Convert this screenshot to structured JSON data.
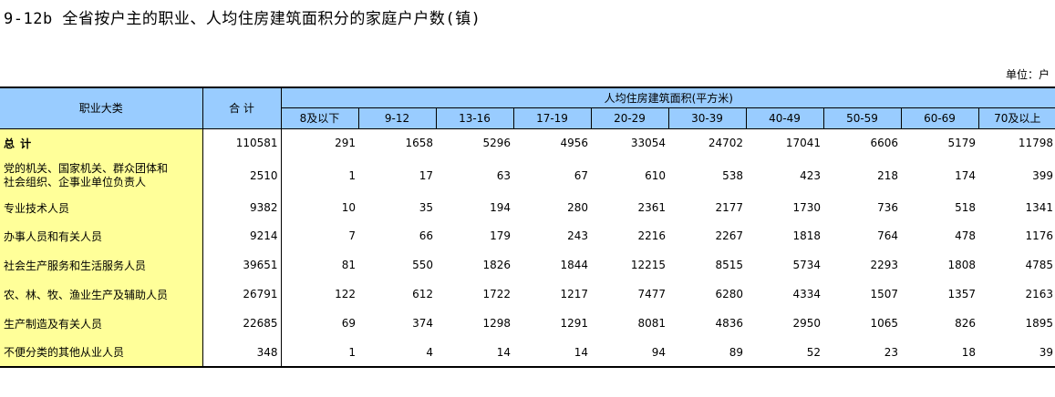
{
  "title": "9-12b   全省按户主的职业、人均住房建筑面积分的家庭户户数(镇)",
  "unit": "单位：户",
  "header": {
    "occupation": "职业大类",
    "total": "合  计",
    "area_group": "人均住房建筑面积(平方米)",
    "area_ranges": [
      "8及以下",
      "9-12",
      "13-16",
      "17-19",
      "20-29",
      "30-39",
      "40-49",
      "50-59",
      "60-69",
      "70及以上"
    ]
  },
  "rows": [
    {
      "label": "总  计",
      "total": "110581",
      "values": [
        "291",
        "1658",
        "5296",
        "4956",
        "33054",
        "24702",
        "17041",
        "6606",
        "5179",
        "11798"
      ]
    },
    {
      "label": "党的机关、国家机关、群众团体和\n 社会组织、企事业单位负责人",
      "total": "2510",
      "values": [
        "1",
        "17",
        "63",
        "67",
        "610",
        "538",
        "423",
        "218",
        "174",
        "399"
      ]
    },
    {
      "label": "专业技术人员",
      "total": "9382",
      "values": [
        "10",
        "35",
        "194",
        "280",
        "2361",
        "2177",
        "1730",
        "736",
        "518",
        "1341"
      ]
    },
    {
      "label": "办事人员和有关人员",
      "total": "9214",
      "values": [
        "7",
        "66",
        "179",
        "243",
        "2216",
        "2267",
        "1818",
        "764",
        "478",
        "1176"
      ]
    },
    {
      "label": "社会生产服务和生活服务人员",
      "total": "39651",
      "values": [
        "81",
        "550",
        "1826",
        "1844",
        "12215",
        "8515",
        "5734",
        "2293",
        "1808",
        "4785"
      ]
    },
    {
      "label": "农、林、牧、渔业生产及辅助人员",
      "total": "26791",
      "values": [
        "122",
        "612",
        "1722",
        "1217",
        "7477",
        "6280",
        "4334",
        "1507",
        "1357",
        "2163"
      ]
    },
    {
      "label": "生产制造及有关人员",
      "total": "22685",
      "values": [
        "69",
        "374",
        "1298",
        "1291",
        "8081",
        "4836",
        "2950",
        "1065",
        "826",
        "1895"
      ]
    },
    {
      "label": "不便分类的其他从业人员",
      "total": "348",
      "values": [
        "1",
        "4",
        "14",
        "14",
        "94",
        "89",
        "52",
        "23",
        "18",
        "39"
      ]
    }
  ],
  "colors": {
    "header_bg": "#99ccff",
    "label_bg": "#ffff99"
  }
}
